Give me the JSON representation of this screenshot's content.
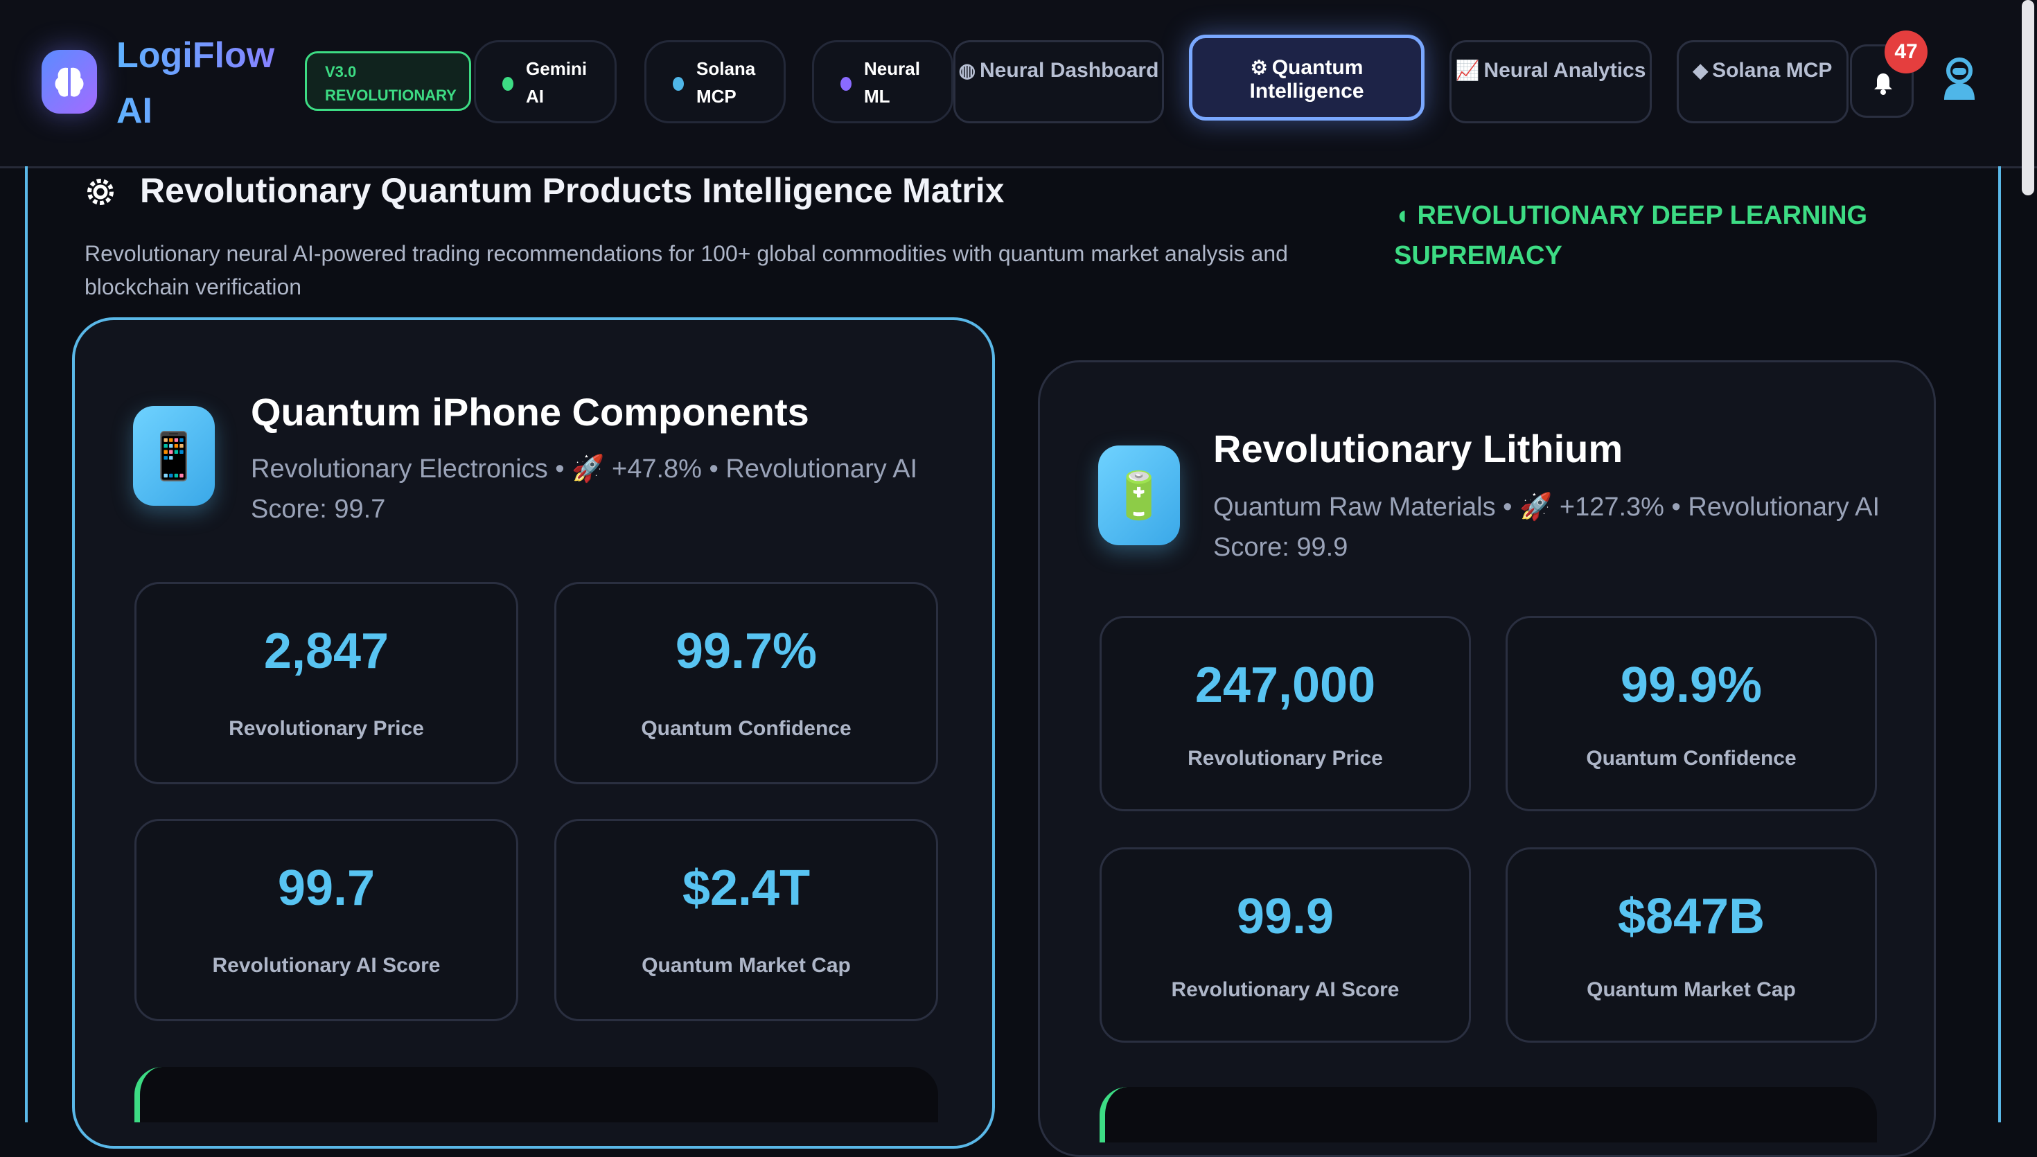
{
  "app": {
    "brand": "LogiFlow AI",
    "version_badge": "V3.0 REVOLUTIONARY"
  },
  "status_pills": [
    {
      "label": "Gemini AI",
      "dot_color": "#3ddc84"
    },
    {
      "label": "Solana MCP",
      "dot_color": "#4fb6e8"
    },
    {
      "label": "Neural ML",
      "dot_color": "#8a6bff"
    }
  ],
  "nav_tabs": [
    {
      "label": "Neural Dashboard",
      "icon": "palette-icon",
      "active": false
    },
    {
      "label": "Quantum Intelligence",
      "icon": "gear-icon",
      "active": true
    },
    {
      "label": "Neural Analytics",
      "icon": "line-chart-icon",
      "active": false
    },
    {
      "label": "Solana MCP",
      "icon": "ethereum-icon",
      "active": false
    }
  ],
  "notifications": {
    "count": "47"
  },
  "section": {
    "title": "Revolutionary Quantum Products Intelligence Matrix",
    "description": "Revolutionary neural AI-powered trading recommendations for 100+ global commodities with quantum market analysis and blockchain verification",
    "badge": "REVOLUTIONARY DEEP LEARNING SUPREMACY"
  },
  "products": [
    {
      "name": "Quantum iPhone Components",
      "icon": "phone-icon",
      "meta": "Revolutionary Electronics • 🚀 +47.8% • Revolutionary AI Score: 99.7",
      "metrics": [
        {
          "value": "2,847",
          "label": "Revolutionary Price"
        },
        {
          "value": "99.7%",
          "label": "Quantum Confidence"
        },
        {
          "value": "99.7",
          "label": "Revolutionary AI Score"
        },
        {
          "value": "$2.4T",
          "label": "Quantum Market Cap"
        }
      ]
    },
    {
      "name": "Revolutionary Lithium",
      "icon": "battery-icon",
      "meta": "Quantum Raw Materials • 🚀 +127.3% • Revolutionary AI Score: 99.9",
      "metrics": [
        {
          "value": "247,000",
          "label": "Revolutionary Price"
        },
        {
          "value": "99.9%",
          "label": "Quantum Confidence"
        },
        {
          "value": "99.9",
          "label": "Revolutionary AI Score"
        },
        {
          "value": "$847B",
          "label": "Quantum Market Cap"
        }
      ]
    }
  ],
  "colors": {
    "accent": "#58c4f2",
    "success": "#3ddc84",
    "background": "#0b0d14",
    "danger": "#e53e3e"
  }
}
